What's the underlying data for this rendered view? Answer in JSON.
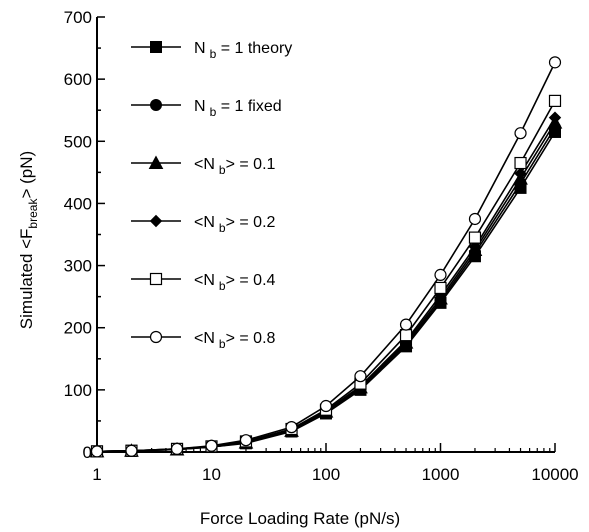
{
  "chart_data": {
    "type": "line",
    "xscale": "log",
    "xlim": [
      1,
      10000
    ],
    "ylim": [
      0,
      700
    ],
    "xlabel": "Force Loading Rate (pN/s)",
    "ylabel": {
      "pre": "Simulated <F",
      "sub": "break",
      "post": "> (pN)"
    },
    "xticks": [
      1,
      10,
      100,
      1000,
      10000
    ],
    "xtick_labels": [
      "1",
      "10",
      "100",
      "1000",
      "10000"
    ],
    "yticks": [
      0,
      100,
      200,
      300,
      400,
      500,
      600,
      700
    ],
    "ytick_labels": [
      "0",
      "100",
      "200",
      "300",
      "400",
      "500",
      "600",
      "700"
    ],
    "grid": false,
    "legend_position": "top-left",
    "x": [
      1,
      2,
      5,
      10,
      20,
      50,
      100,
      200,
      500,
      1000,
      2000,
      5000,
      10000
    ],
    "series": [
      {
        "name": "N b = 1 theory",
        "legend": {
          "pre": "N",
          "sub": "b",
          "post": " = 1 theory"
        },
        "marker": "square-filled",
        "values": [
          1,
          2,
          4,
          8,
          14,
          33,
          62,
          100,
          170,
          240,
          315,
          425,
          515
        ]
      },
      {
        "name": "N b = 1 fixed",
        "legend": {
          "pre": "N",
          "sub": "b",
          "post": " = 1 fixed"
        },
        "marker": "circle-filled",
        "values": [
          1,
          2,
          4,
          8,
          15,
          34,
          64,
          102,
          173,
          243,
          320,
          432,
          522
        ]
      },
      {
        "name": "<N b> = 0.1",
        "legend": {
          "pre": "<N",
          "sub": "b",
          "post": "> = 0.1"
        },
        "marker": "triangle-filled",
        "values": [
          1,
          2,
          4,
          8,
          15,
          34,
          65,
          104,
          176,
          247,
          325,
          440,
          530
        ]
      },
      {
        "name": "<N b> = 0.2",
        "legend": {
          "pre": "<N",
          "sub": "b",
          "post": "> = 0.2"
        },
        "marker": "diamond-filled",
        "values": [
          1,
          2,
          5,
          9,
          16,
          35,
          66,
          106,
          179,
          252,
          330,
          448,
          538
        ]
      },
      {
        "name": "<N b> = 0.4",
        "legend": {
          "pre": "<N",
          "sub": "b",
          "post": "> = 0.4"
        },
        "marker": "square-open",
        "values": [
          1,
          2,
          5,
          9,
          17,
          37,
          68,
          110,
          188,
          264,
          345,
          465,
          565
        ]
      },
      {
        "name": "<N b> = 0.8",
        "legend": {
          "pre": "<N",
          "sub": "b",
          "post": "> = 0.8"
        },
        "marker": "circle-open",
        "values": [
          1,
          2,
          5,
          10,
          19,
          40,
          74,
          122,
          205,
          285,
          375,
          513,
          627
        ]
      }
    ]
  }
}
